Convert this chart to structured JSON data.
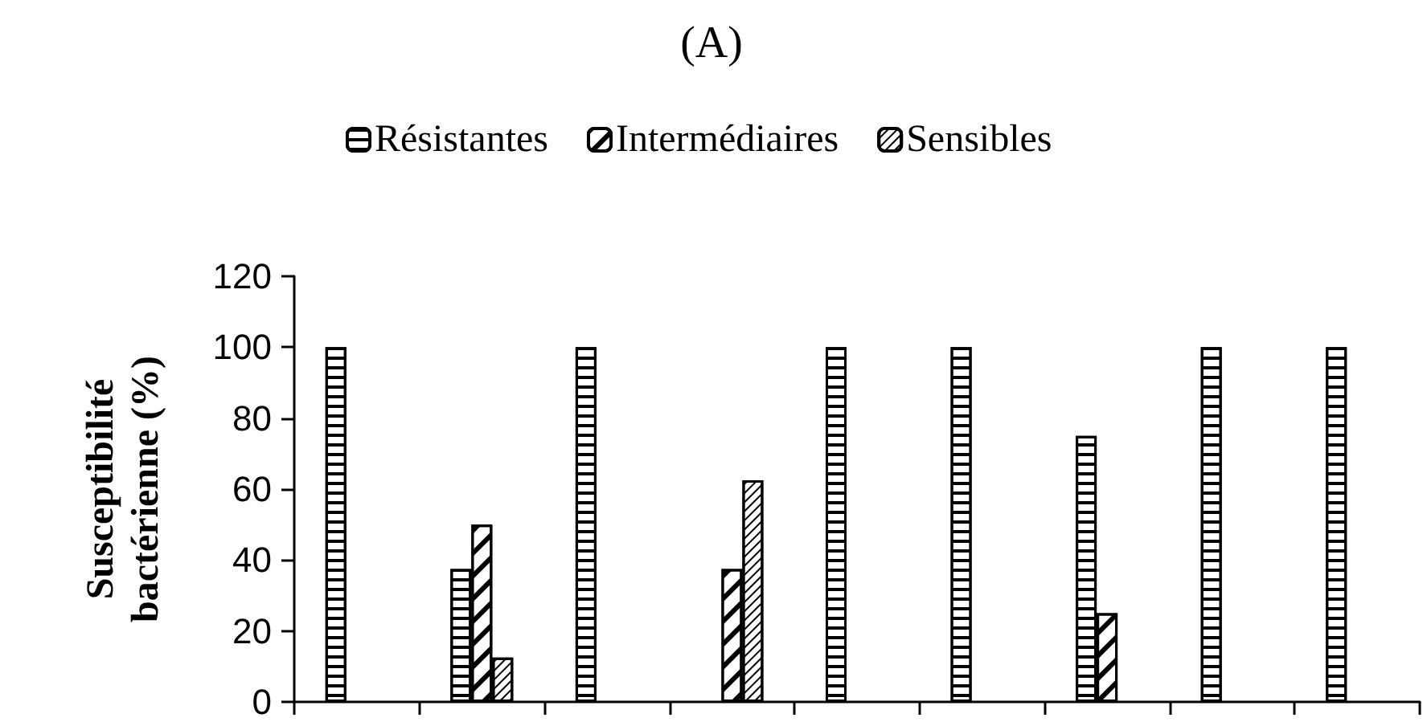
{
  "chart_data": {
    "type": "bar",
    "title": "(A)",
    "ylabel": "Susceptibilité bactérienne (%)",
    "categories": [
      null,
      null,
      null,
      null,
      null,
      null,
      null,
      null,
      null
    ],
    "series": [
      {
        "name": "Résistantes",
        "color": "#ffffff",
        "values": [
          100,
          37.5,
          100,
          null,
          100,
          100,
          75,
          100,
          100
        ]
      },
      {
        "name": "Intermédiaires",
        "color": "#ffffff",
        "values": [
          null,
          50,
          null,
          37.5,
          null,
          null,
          25,
          null,
          null
        ]
      },
      {
        "name": "Sensibles",
        "color": "#ffffff",
        "values": [
          null,
          12.5,
          null,
          62.5,
          null,
          null,
          null,
          null,
          null
        ]
      }
    ],
    "ylim": [
      0,
      120
    ],
    "yticks": [
      0,
      20,
      40,
      60,
      80,
      100,
      120
    ],
    "grid": false,
    "legend": "top"
  }
}
